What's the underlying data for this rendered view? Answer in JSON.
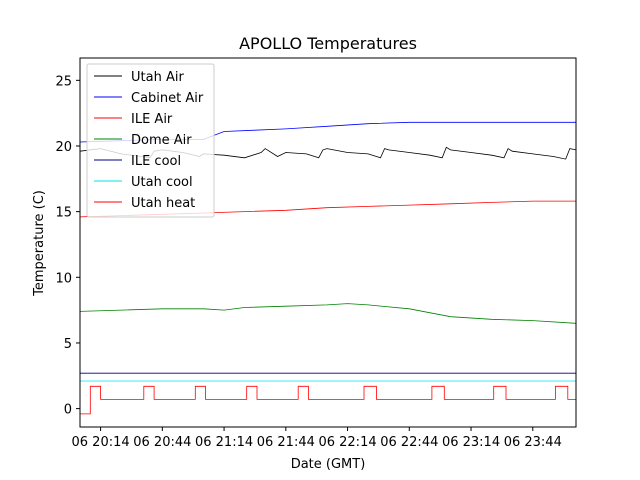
{
  "chart_data": {
    "type": "line",
    "title": "APOLLO Temperatures",
    "xlabel": "Date (GMT)",
    "ylabel": "Temperature (C)",
    "xlim": [
      0,
      241
    ],
    "ylim": [
      -1.4,
      26.7
    ],
    "grid": false,
    "legend_position": "top-left",
    "x_ticks": [
      {
        "value": 10,
        "label": "06 20:14"
      },
      {
        "value": 40,
        "label": "06 20:44"
      },
      {
        "value": 70,
        "label": "06 21:14"
      },
      {
        "value": 100,
        "label": "06 21:44"
      },
      {
        "value": 130,
        "label": "06 22:14"
      },
      {
        "value": 160,
        "label": "06 22:44"
      },
      {
        "value": 190,
        "label": "06 23:14"
      },
      {
        "value": 220,
        "label": "06 23:44"
      }
    ],
    "y_ticks": [
      {
        "value": 0,
        "label": "0"
      },
      {
        "value": 5,
        "label": "5"
      },
      {
        "value": 10,
        "label": "10"
      },
      {
        "value": 15,
        "label": "15"
      },
      {
        "value": 20,
        "label": "20"
      },
      {
        "value": 25,
        "label": "25"
      }
    ],
    "series": [
      {
        "name": "Utah Air",
        "color": "#000000",
        "x": [
          0,
          10,
          20,
          30,
          34,
          36,
          40,
          50,
          58,
          60,
          70,
          80,
          88,
          90,
          96,
          100,
          110,
          116,
          118,
          120,
          130,
          140,
          146,
          148,
          150,
          160,
          170,
          176,
          178,
          180,
          190,
          200,
          206,
          208,
          210,
          220,
          230,
          236,
          238,
          241
        ],
        "y": [
          19.6,
          19.8,
          19.4,
          19.2,
          19.1,
          19.6,
          19.7,
          19.5,
          19.2,
          19.4,
          19.3,
          19.1,
          19.5,
          19.8,
          19.2,
          19.5,
          19.4,
          19.1,
          19.7,
          19.8,
          19.5,
          19.4,
          19.1,
          19.8,
          19.7,
          19.5,
          19.3,
          19.1,
          19.9,
          19.7,
          19.5,
          19.3,
          19.1,
          19.8,
          19.6,
          19.4,
          19.2,
          19.0,
          19.8,
          19.7
        ]
      },
      {
        "name": "Cabinet Air",
        "color": "#0000ff",
        "x": [
          0,
          20,
          40,
          60,
          70,
          85,
          100,
          120,
          140,
          160,
          180,
          200,
          220,
          241
        ],
        "y": [
          20.3,
          20.4,
          20.5,
          20.5,
          21.1,
          21.2,
          21.3,
          21.5,
          21.7,
          21.8,
          21.8,
          21.8,
          21.8,
          21.8
        ]
      },
      {
        "name": "ILE Air",
        "color": "#ff0000",
        "x": [
          0,
          20,
          40,
          60,
          80,
          100,
          120,
          140,
          160,
          180,
          200,
          220,
          241
        ],
        "y": [
          14.6,
          14.7,
          14.8,
          14.9,
          15.0,
          15.1,
          15.3,
          15.4,
          15.5,
          15.6,
          15.7,
          15.8,
          15.8
        ]
      },
      {
        "name": "Dome Air",
        "color": "#008000",
        "x": [
          0,
          20,
          40,
          60,
          70,
          80,
          100,
          120,
          130,
          140,
          160,
          180,
          200,
          220,
          241
        ],
        "y": [
          7.4,
          7.5,
          7.6,
          7.6,
          7.5,
          7.7,
          7.8,
          7.9,
          8.0,
          7.9,
          7.6,
          7.0,
          6.8,
          6.7,
          6.5
        ]
      },
      {
        "name": "ILE cool",
        "color": "#000080",
        "x": [
          0,
          241
        ],
        "y": [
          2.7,
          2.7
        ]
      },
      {
        "name": "Utah cool",
        "color": "#00e5e5",
        "x": [
          0,
          241
        ],
        "y": [
          2.1,
          2.1
        ]
      },
      {
        "name": "Utah heat",
        "color": "#ff0000",
        "x": [
          0,
          5,
          5,
          10,
          10,
          31,
          31,
          36,
          36,
          56,
          56,
          61,
          61,
          81,
          81,
          86,
          86,
          106,
          106,
          111,
          111,
          138,
          138,
          144,
          144,
          171,
          171,
          177,
          177,
          201,
          201,
          207,
          207,
          231,
          231,
          237,
          237,
          241
        ],
        "y": [
          -0.4,
          -0.4,
          1.7,
          1.7,
          0.7,
          0.7,
          1.7,
          1.7,
          0.7,
          0.7,
          1.7,
          1.7,
          0.7,
          0.7,
          1.7,
          1.7,
          0.7,
          0.7,
          1.7,
          1.7,
          0.7,
          0.7,
          1.7,
          1.7,
          0.7,
          0.7,
          1.7,
          1.7,
          0.7,
          0.7,
          1.7,
          1.7,
          0.7,
          0.7,
          1.7,
          1.7,
          0.7,
          0.7
        ]
      }
    ]
  }
}
